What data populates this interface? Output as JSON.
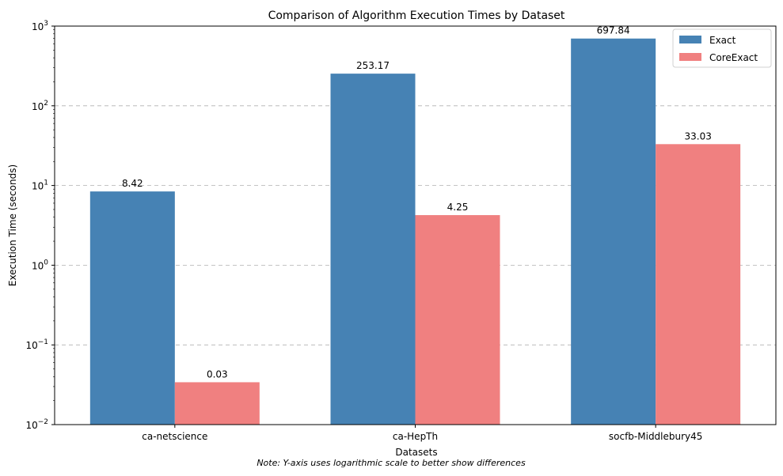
{
  "chart_data": {
    "type": "bar",
    "title": "Comparison of Algorithm Execution Times by Dataset",
    "xlabel": "Datasets",
    "ylabel": "Execution Time (seconds)",
    "yscale": "log",
    "ylim": [
      0.01,
      1000
    ],
    "yticks": [
      {
        "value": 0.01,
        "base": "10",
        "exp": "−2"
      },
      {
        "value": 0.1,
        "base": "10",
        "exp": "−1"
      },
      {
        "value": 1,
        "base": "10",
        "exp": "0"
      },
      {
        "value": 10,
        "base": "10",
        "exp": "1"
      },
      {
        "value": 100,
        "base": "10",
        "exp": "2"
      },
      {
        "value": 1000,
        "base": "10",
        "exp": "3"
      }
    ],
    "grid": "y-dashed",
    "legend_position": "top-right",
    "categories": [
      "ca-netscience",
      "ca-HepTh",
      "socfb-Middlebury45"
    ],
    "series": [
      {
        "name": "Exact",
        "color": "#4682b4",
        "values": [
          8.42,
          253.17,
          697.84
        ],
        "labels": [
          "8.42",
          "253.17",
          "697.84"
        ]
      },
      {
        "name": "CoreExact",
        "color": "#f08080",
        "values": [
          0.034,
          4.25,
          33.03
        ],
        "labels": [
          "0.03",
          "4.25",
          "33.03"
        ]
      }
    ],
    "note": "Note: Y-axis uses logarithmic scale to better show differences"
  }
}
